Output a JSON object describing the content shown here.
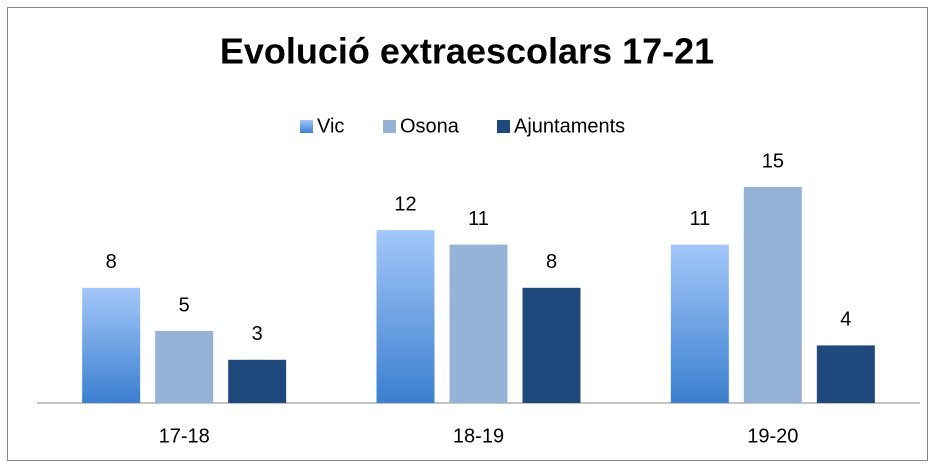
{
  "chart_data": {
    "type": "bar",
    "title": "Evolució extraescolars 17-21",
    "categories": [
      "17-18",
      "18-19",
      "19-20"
    ],
    "series": [
      {
        "name": "Vic",
        "color": "#4f81bd",
        "values": [
          8,
          12,
          11
        ]
      },
      {
        "name": "Osona",
        "color": "#95b3d7",
        "values": [
          5,
          11,
          15
        ]
      },
      {
        "name": "Ajuntaments",
        "color": "#1f497d",
        "values": [
          3,
          8,
          4
        ]
      }
    ],
    "legend": "top"
  }
}
